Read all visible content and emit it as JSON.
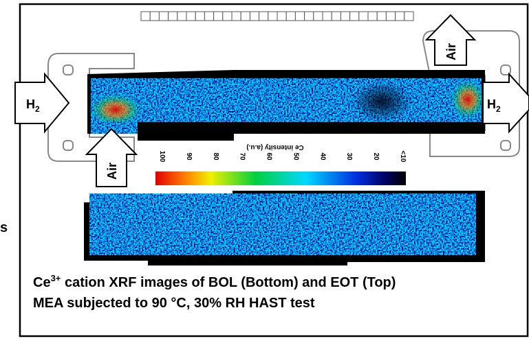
{
  "labels": {
    "h2_left": {
      "text": "H",
      "subscript": "2"
    },
    "h2_right": {
      "text": "H",
      "subscript": "2"
    },
    "air_bottom": "Air",
    "air_top": "Air"
  },
  "colorbar": {
    "title": "Ce intensity (a.u.)",
    "ticks": [
      "100",
      "90",
      "80",
      "70",
      "60",
      "50",
      "40",
      "30",
      "20",
      "<10"
    ]
  },
  "caption": {
    "line1": {
      "text": "Ce",
      "superscript": "3+",
      "rest": " cation XRF images of BOL (Bottom) and EOT (Top)"
    },
    "line2": "MEA subjected to 90 °C, 30% RH HAST test"
  },
  "edge_text": "s"
}
